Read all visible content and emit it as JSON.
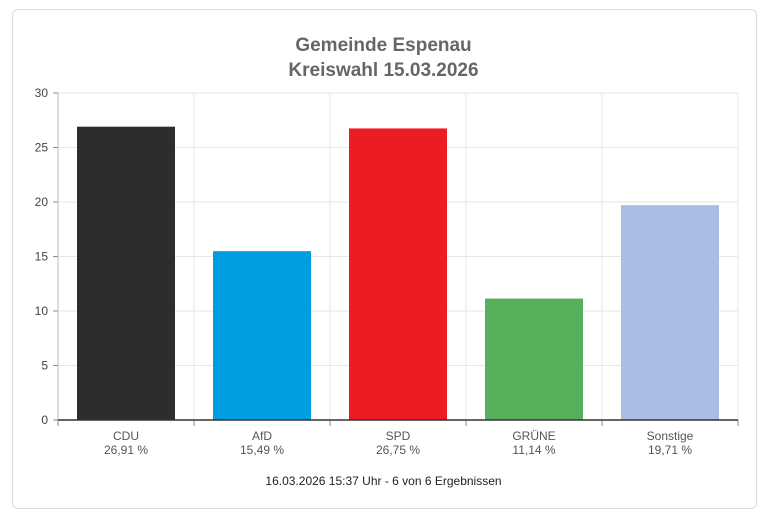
{
  "header": {
    "title_line1": "Gemeinde Espenau",
    "title_line2": "Kreiswahl 15.03.2026"
  },
  "footer": {
    "status": "16.03.2026 15:37 Uhr - 6 von 6 Ergebnissen"
  },
  "chart_data": {
    "type": "bar",
    "title": "Gemeinde Espenau / Kreiswahl 15.03.2026",
    "categories": [
      "CDU",
      "AfD",
      "SPD",
      "GRÜNE",
      "Sonstige"
    ],
    "values": [
      26.91,
      15.49,
      26.75,
      11.14,
      19.71
    ],
    "value_labels": [
      "26,91 %",
      "15,49 %",
      "26,75 %",
      "11,14 %",
      "19,71 %"
    ],
    "colors": [
      "#2e2c2d",
      "#009ee0",
      "#ed1c24",
      "#56b05b",
      "#abbde5"
    ],
    "ylim": [
      0,
      30
    ],
    "yticks": [
      0,
      5,
      10,
      15,
      20,
      25,
      30
    ],
    "grid": true,
    "legend": "none",
    "xlabel": "",
    "ylabel": ""
  }
}
